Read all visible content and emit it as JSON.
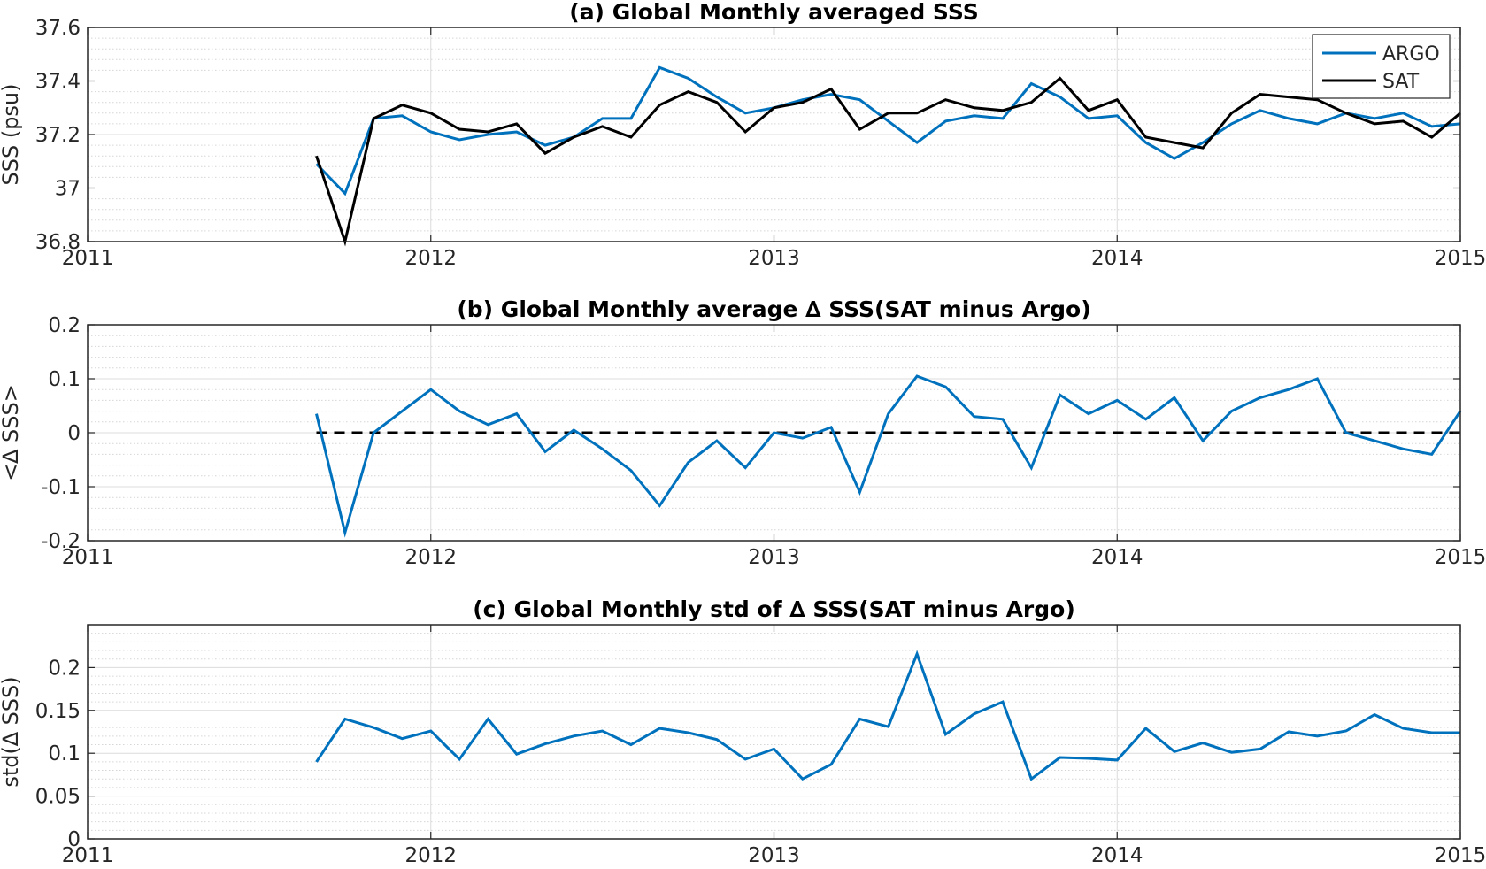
{
  "chart_data": [
    {
      "type": "line",
      "title": "(a) Global Monthly averaged SSS",
      "xlabel": "",
      "ylabel": "SSS (psu)",
      "xlim": [
        2011,
        2015
      ],
      "ylim": [
        36.8,
        37.6
      ],
      "xticks": [
        2011,
        2012,
        2013,
        2014,
        2015
      ],
      "xtick_labels": [
        "2011",
        "2012",
        "2013",
        "2014",
        "2015"
      ],
      "yticks": [
        36.8,
        37.0,
        37.2,
        37.4,
        37.6
      ],
      "ytick_labels": [
        "36.8",
        "37",
        "37.2",
        "37.4",
        "37.6"
      ],
      "grid": true,
      "minor_grid": true,
      "legend_position": "top-right",
      "x": [
        "2011-09",
        "2011-10",
        "2011-11",
        "2011-12",
        "2012-01",
        "2012-02",
        "2012-03",
        "2012-04",
        "2012-05",
        "2012-06",
        "2012-07",
        "2012-08",
        "2012-09",
        "2012-10",
        "2012-11",
        "2012-12",
        "2013-01",
        "2013-02",
        "2013-03",
        "2013-04",
        "2013-05",
        "2013-06",
        "2013-07",
        "2013-08",
        "2013-09",
        "2013-10",
        "2013-11",
        "2013-12",
        "2014-01",
        "2014-02",
        "2014-03",
        "2014-04",
        "2014-05",
        "2014-06",
        "2014-07",
        "2014-08",
        "2014-09",
        "2014-10",
        "2014-11",
        "2014-12",
        "2015-01"
      ],
      "series": [
        {
          "name": "ARGO",
          "color": "#0072BD",
          "values": [
            37.09,
            36.98,
            37.26,
            37.27,
            37.21,
            37.18,
            37.2,
            37.21,
            37.16,
            37.19,
            37.26,
            37.26,
            37.45,
            37.41,
            37.34,
            37.28,
            37.3,
            37.33,
            37.35,
            37.33,
            37.25,
            37.17,
            37.25,
            37.27,
            37.26,
            37.39,
            37.34,
            37.26,
            37.27,
            37.17,
            37.11,
            37.17,
            37.24,
            37.29,
            37.26,
            37.24,
            37.28,
            37.26,
            37.28,
            37.23,
            37.24
          ]
        },
        {
          "name": "SAT",
          "color": "#000000",
          "values": [
            37.12,
            36.8,
            37.26,
            37.31,
            37.28,
            37.22,
            37.21,
            37.24,
            37.13,
            37.19,
            37.23,
            37.19,
            37.31,
            37.36,
            37.32,
            37.21,
            37.3,
            37.32,
            37.37,
            37.22,
            37.28,
            37.28,
            37.33,
            37.3,
            37.29,
            37.32,
            37.41,
            37.29,
            37.33,
            37.19,
            37.17,
            37.15,
            37.28,
            37.35,
            37.34,
            37.33,
            37.28,
            37.24,
            37.25,
            37.19,
            37.28
          ]
        }
      ]
    },
    {
      "type": "line",
      "title": "(b) Global Monthly average ∆ SSS(SAT minus Argo)",
      "xlabel": "",
      "ylabel": "<∆ SSS>",
      "xlim": [
        2011,
        2015
      ],
      "ylim": [
        -0.2,
        0.2
      ],
      "xticks": [
        2011,
        2012,
        2013,
        2014,
        2015
      ],
      "xtick_labels": [
        "2011",
        "2012",
        "2013",
        "2014",
        "2015"
      ],
      "yticks": [
        -0.2,
        -0.1,
        0,
        0.1,
        0.2
      ],
      "ytick_labels": [
        "-0.2",
        "-0.1",
        "0",
        "0.1",
        "0.2"
      ],
      "grid": true,
      "minor_grid": true,
      "reference_line": {
        "y": 0,
        "style": "dashed",
        "color": "#000000",
        "x_range": [
          "2011-09",
          "2015-01"
        ]
      },
      "x": [
        "2011-09",
        "2011-10",
        "2011-11",
        "2011-12",
        "2012-01",
        "2012-02",
        "2012-03",
        "2012-04",
        "2012-05",
        "2012-06",
        "2012-07",
        "2012-08",
        "2012-09",
        "2012-10",
        "2012-11",
        "2012-12",
        "2013-01",
        "2013-02",
        "2013-03",
        "2013-04",
        "2013-05",
        "2013-06",
        "2013-07",
        "2013-08",
        "2013-09",
        "2013-10",
        "2013-11",
        "2013-12",
        "2014-01",
        "2014-02",
        "2014-03",
        "2014-04",
        "2014-05",
        "2014-06",
        "2014-07",
        "2014-08",
        "2014-09",
        "2014-10",
        "2014-11",
        "2014-12",
        "2015-01"
      ],
      "series": [
        {
          "color": "#0072BD",
          "values": [
            0.035,
            -0.185,
            0.0,
            0.04,
            0.08,
            0.04,
            0.015,
            0.035,
            -0.035,
            0.005,
            -0.03,
            -0.07,
            -0.135,
            -0.055,
            -0.015,
            -0.065,
            0.0,
            -0.01,
            0.01,
            -0.11,
            0.035,
            0.105,
            0.085,
            0.03,
            0.025,
            -0.065,
            0.07,
            0.035,
            0.06,
            0.025,
            0.065,
            -0.015,
            0.04,
            0.065,
            0.08,
            0.1,
            0.0,
            -0.015,
            -0.03,
            -0.04,
            0.04
          ]
        }
      ]
    },
    {
      "type": "line",
      "title": "(c) Global Monthly std of ∆ SSS(SAT minus Argo)",
      "xlabel": "",
      "ylabel": "std(∆ SSS)",
      "xlim": [
        2011,
        2015
      ],
      "ylim": [
        0,
        0.25
      ],
      "xticks": [
        2011,
        2012,
        2013,
        2014,
        2015
      ],
      "xtick_labels": [
        "2011",
        "2012",
        "2013",
        "2014",
        "2015"
      ],
      "yticks": [
        0,
        0.05,
        0.1,
        0.15,
        0.2
      ],
      "ytick_labels": [
        "0",
        "0.05",
        "0.1",
        "0.15",
        "0.2"
      ],
      "grid": true,
      "minor_grid": true,
      "x": [
        "2011-09",
        "2011-10",
        "2011-11",
        "2011-12",
        "2012-01",
        "2012-02",
        "2012-03",
        "2012-04",
        "2012-05",
        "2012-06",
        "2012-07",
        "2012-08",
        "2012-09",
        "2012-10",
        "2012-11",
        "2012-12",
        "2013-01",
        "2013-02",
        "2013-03",
        "2013-04",
        "2013-05",
        "2013-06",
        "2013-07",
        "2013-08",
        "2013-09",
        "2013-10",
        "2013-11",
        "2013-12",
        "2014-01",
        "2014-02",
        "2014-03",
        "2014-04",
        "2014-05",
        "2014-06",
        "2014-07",
        "2014-08",
        "2014-09",
        "2014-10",
        "2014-11",
        "2014-12",
        "2015-01"
      ],
      "series": [
        {
          "color": "#0072BD",
          "values": [
            0.09,
            0.14,
            0.13,
            0.117,
            0.126,
            0.093,
            0.14,
            0.099,
            0.111,
            0.12,
            0.126,
            0.11,
            0.129,
            0.124,
            0.116,
            0.093,
            0.105,
            0.07,
            0.087,
            0.14,
            0.131,
            0.216,
            0.122,
            0.146,
            0.16,
            0.07,
            0.095,
            0.094,
            0.092,
            0.129,
            0.102,
            0.112,
            0.101,
            0.105,
            0.125,
            0.12,
            0.126,
            0.145,
            0.129,
            0.124,
            0.124
          ]
        }
      ]
    }
  ]
}
